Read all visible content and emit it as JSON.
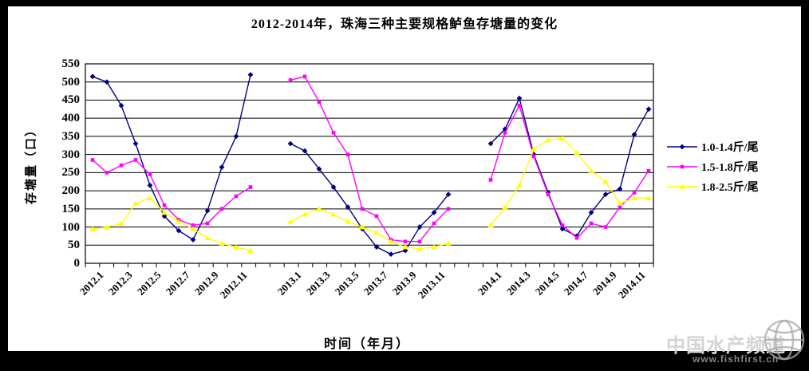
{
  "title": "2012-2014年，珠海三种主要规格鲈鱼存塘量的变化",
  "watermark": {
    "text": "中国水产频道",
    "url": "www.fishfirst.cn",
    "icon": "globe-icon"
  },
  "chart_data": {
    "type": "line",
    "title": "2012-2014年，珠海三种主要规格鲈鱼存塘量的变化",
    "xlabel": "时间（年月）",
    "ylabel": "存塘量（口）",
    "ylim": [
      0,
      550
    ],
    "ytick_step": 50,
    "grid": true,
    "legend_position": "right",
    "years": [
      "2012",
      "2013",
      "2014"
    ],
    "points_per_year": 12,
    "x_tick_labels": [
      "2012.1",
      "2012.3",
      "2012.5",
      "2012.7",
      "2012.9",
      "2012.11",
      "2013.1",
      "2013.3",
      "2013.5",
      "2013.7",
      "2013.9",
      "2013.11",
      "2014.1",
      "2014.3",
      "2014.5",
      "2014.7",
      "2014.9",
      "2014.11"
    ],
    "series": [
      {
        "name": "1.0-1.4斤/尾",
        "color": "#000080",
        "marker": "diamond",
        "values": [
          515,
          500,
          435,
          330,
          215,
          130,
          90,
          65,
          145,
          265,
          350,
          520,
          330,
          310,
          260,
          210,
          155,
          95,
          45,
          25,
          35,
          100,
          140,
          190,
          330,
          370,
          455,
          300,
          195,
          95,
          75,
          140,
          190,
          205,
          355,
          425
        ]
      },
      {
        "name": "1.5-1.8斤/尾",
        "color": "#FF00FF",
        "marker": "square",
        "values": [
          285,
          250,
          270,
          285,
          245,
          160,
          120,
          105,
          110,
          150,
          185,
          210,
          505,
          515,
          445,
          360,
          300,
          150,
          130,
          65,
          60,
          60,
          110,
          150,
          230,
          360,
          435,
          295,
          190,
          105,
          70,
          110,
          100,
          155,
          195,
          255
        ]
      },
      {
        "name": "1.8-2.5斤/尾",
        "color": "#FFFF00",
        "marker": "triangle",
        "values": [
          95,
          100,
          110,
          165,
          180,
          140,
          115,
          95,
          70,
          55,
          45,
          35,
          115,
          135,
          150,
          135,
          115,
          100,
          85,
          60,
          45,
          40,
          45,
          55,
          105,
          155,
          215,
          315,
          340,
          345,
          305,
          255,
          225,
          165,
          180,
          180
        ]
      }
    ]
  }
}
